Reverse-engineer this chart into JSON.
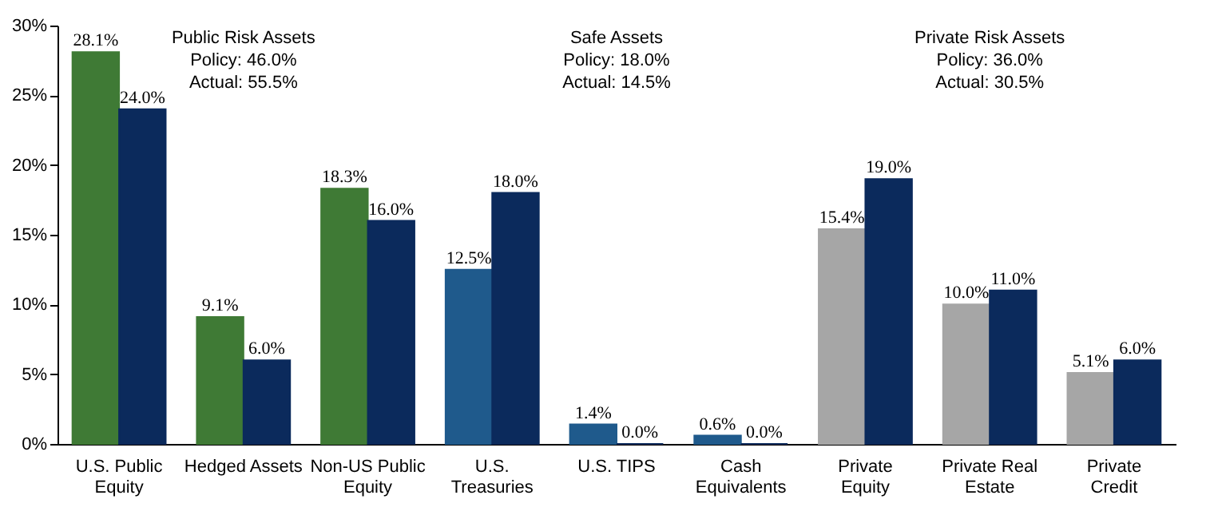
{
  "chart_data": {
    "type": "bar",
    "categories": [
      "U.S. Public Equity",
      "Hedged Assets",
      "Non-US Public Equity",
      "U.S. Treasuries",
      "U.S. TIPS",
      "Cash Equivalents",
      "Private Equity",
      "Private Real Estate",
      "Private Credit"
    ],
    "series": [
      {
        "colors": [
          "#3f7a35",
          "#3f7a35",
          "#3f7a35",
          "#1f5a8c",
          "#1f5a8c",
          "#1f5a8c",
          "#a6a6a6",
          "#a6a6a6",
          "#a6a6a6"
        ],
        "values": [
          28.1,
          9.1,
          18.3,
          12.5,
          1.4,
          0.6,
          15.4,
          10.0,
          5.1
        ],
        "value_labels": [
          "28.1%",
          "9.1%",
          "18.3%",
          "12.5%",
          "1.4%",
          "0.6%",
          "15.4%",
          "10.0%",
          "5.1%"
        ]
      },
      {
        "color": "#0b2a5c",
        "values": [
          24.0,
          6.0,
          16.0,
          18.0,
          0.0,
          0.0,
          19.0,
          11.0,
          6.0
        ],
        "value_labels": [
          "24.0%",
          "6.0%",
          "16.0%",
          "18.0%",
          "0.0%",
          "0.0%",
          "19.0%",
          "11.0%",
          "6.0%"
        ]
      }
    ],
    "ylim": [
      0,
      30
    ],
    "yticks": [
      {
        "value": 0,
        "label": "0%"
      },
      {
        "value": 5,
        "label": "5%"
      },
      {
        "value": 10,
        "label": "10%"
      },
      {
        "value": 15,
        "label": "15%"
      },
      {
        "value": 20,
        "label": "20%"
      },
      {
        "value": 25,
        "label": "25%"
      },
      {
        "value": 30,
        "label": "30%"
      }
    ],
    "grid": false,
    "annotations": [
      "Public Risk Assets",
      "Policy:  46.0%",
      "Actual:  55.5%",
      "Safe Assets",
      "Policy:  18.0%",
      "Actual:  14.5%",
      "Private Risk Assets",
      "Policy:  36.0%",
      "Actual:  30.5%"
    ]
  }
}
